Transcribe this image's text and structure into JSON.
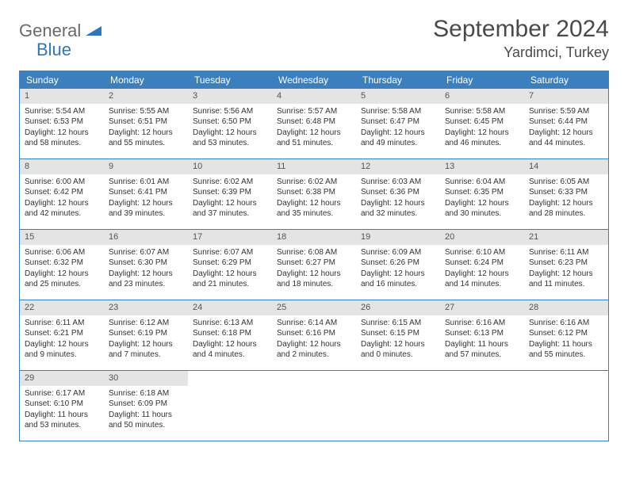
{
  "brand": {
    "name": "General",
    "sub": "Blue"
  },
  "title": "September 2024",
  "location": "Yardimci, Turkey",
  "colors": {
    "header_bg": "#3b7fbf",
    "header_text": "#ffffff",
    "border": "#3b7fbf",
    "date_bar_bg": "#e4e4e4",
    "body_text": "#333333",
    "brand_gray": "#6a6a6a",
    "brand_blue": "#2f77b6"
  },
  "typography": {
    "title_fontsize": 30,
    "location_fontsize": 18,
    "weekday_fontsize": 12,
    "date_fontsize": 11,
    "body_fontsize": 10
  },
  "weekdays": [
    "Sunday",
    "Monday",
    "Tuesday",
    "Wednesday",
    "Thursday",
    "Friday",
    "Saturday"
  ],
  "weeks": [
    [
      {
        "date": "1",
        "sunrise": "Sunrise: 5:54 AM",
        "sunset": "Sunset: 6:53 PM",
        "daylight1": "Daylight: 12 hours",
        "daylight2": "and 58 minutes."
      },
      {
        "date": "2",
        "sunrise": "Sunrise: 5:55 AM",
        "sunset": "Sunset: 6:51 PM",
        "daylight1": "Daylight: 12 hours",
        "daylight2": "and 55 minutes."
      },
      {
        "date": "3",
        "sunrise": "Sunrise: 5:56 AM",
        "sunset": "Sunset: 6:50 PM",
        "daylight1": "Daylight: 12 hours",
        "daylight2": "and 53 minutes."
      },
      {
        "date": "4",
        "sunrise": "Sunrise: 5:57 AM",
        "sunset": "Sunset: 6:48 PM",
        "daylight1": "Daylight: 12 hours",
        "daylight2": "and 51 minutes."
      },
      {
        "date": "5",
        "sunrise": "Sunrise: 5:58 AM",
        "sunset": "Sunset: 6:47 PM",
        "daylight1": "Daylight: 12 hours",
        "daylight2": "and 49 minutes."
      },
      {
        "date": "6",
        "sunrise": "Sunrise: 5:58 AM",
        "sunset": "Sunset: 6:45 PM",
        "daylight1": "Daylight: 12 hours",
        "daylight2": "and 46 minutes."
      },
      {
        "date": "7",
        "sunrise": "Sunrise: 5:59 AM",
        "sunset": "Sunset: 6:44 PM",
        "daylight1": "Daylight: 12 hours",
        "daylight2": "and 44 minutes."
      }
    ],
    [
      {
        "date": "8",
        "sunrise": "Sunrise: 6:00 AM",
        "sunset": "Sunset: 6:42 PM",
        "daylight1": "Daylight: 12 hours",
        "daylight2": "and 42 minutes."
      },
      {
        "date": "9",
        "sunrise": "Sunrise: 6:01 AM",
        "sunset": "Sunset: 6:41 PM",
        "daylight1": "Daylight: 12 hours",
        "daylight2": "and 39 minutes."
      },
      {
        "date": "10",
        "sunrise": "Sunrise: 6:02 AM",
        "sunset": "Sunset: 6:39 PM",
        "daylight1": "Daylight: 12 hours",
        "daylight2": "and 37 minutes."
      },
      {
        "date": "11",
        "sunrise": "Sunrise: 6:02 AM",
        "sunset": "Sunset: 6:38 PM",
        "daylight1": "Daylight: 12 hours",
        "daylight2": "and 35 minutes."
      },
      {
        "date": "12",
        "sunrise": "Sunrise: 6:03 AM",
        "sunset": "Sunset: 6:36 PM",
        "daylight1": "Daylight: 12 hours",
        "daylight2": "and 32 minutes."
      },
      {
        "date": "13",
        "sunrise": "Sunrise: 6:04 AM",
        "sunset": "Sunset: 6:35 PM",
        "daylight1": "Daylight: 12 hours",
        "daylight2": "and 30 minutes."
      },
      {
        "date": "14",
        "sunrise": "Sunrise: 6:05 AM",
        "sunset": "Sunset: 6:33 PM",
        "daylight1": "Daylight: 12 hours",
        "daylight2": "and 28 minutes."
      }
    ],
    [
      {
        "date": "15",
        "sunrise": "Sunrise: 6:06 AM",
        "sunset": "Sunset: 6:32 PM",
        "daylight1": "Daylight: 12 hours",
        "daylight2": "and 25 minutes."
      },
      {
        "date": "16",
        "sunrise": "Sunrise: 6:07 AM",
        "sunset": "Sunset: 6:30 PM",
        "daylight1": "Daylight: 12 hours",
        "daylight2": "and 23 minutes."
      },
      {
        "date": "17",
        "sunrise": "Sunrise: 6:07 AM",
        "sunset": "Sunset: 6:29 PM",
        "daylight1": "Daylight: 12 hours",
        "daylight2": "and 21 minutes."
      },
      {
        "date": "18",
        "sunrise": "Sunrise: 6:08 AM",
        "sunset": "Sunset: 6:27 PM",
        "daylight1": "Daylight: 12 hours",
        "daylight2": "and 18 minutes."
      },
      {
        "date": "19",
        "sunrise": "Sunrise: 6:09 AM",
        "sunset": "Sunset: 6:26 PM",
        "daylight1": "Daylight: 12 hours",
        "daylight2": "and 16 minutes."
      },
      {
        "date": "20",
        "sunrise": "Sunrise: 6:10 AM",
        "sunset": "Sunset: 6:24 PM",
        "daylight1": "Daylight: 12 hours",
        "daylight2": "and 14 minutes."
      },
      {
        "date": "21",
        "sunrise": "Sunrise: 6:11 AM",
        "sunset": "Sunset: 6:23 PM",
        "daylight1": "Daylight: 12 hours",
        "daylight2": "and 11 minutes."
      }
    ],
    [
      {
        "date": "22",
        "sunrise": "Sunrise: 6:11 AM",
        "sunset": "Sunset: 6:21 PM",
        "daylight1": "Daylight: 12 hours",
        "daylight2": "and 9 minutes."
      },
      {
        "date": "23",
        "sunrise": "Sunrise: 6:12 AM",
        "sunset": "Sunset: 6:19 PM",
        "daylight1": "Daylight: 12 hours",
        "daylight2": "and 7 minutes."
      },
      {
        "date": "24",
        "sunrise": "Sunrise: 6:13 AM",
        "sunset": "Sunset: 6:18 PM",
        "daylight1": "Daylight: 12 hours",
        "daylight2": "and 4 minutes."
      },
      {
        "date": "25",
        "sunrise": "Sunrise: 6:14 AM",
        "sunset": "Sunset: 6:16 PM",
        "daylight1": "Daylight: 12 hours",
        "daylight2": "and 2 minutes."
      },
      {
        "date": "26",
        "sunrise": "Sunrise: 6:15 AM",
        "sunset": "Sunset: 6:15 PM",
        "daylight1": "Daylight: 12 hours",
        "daylight2": "and 0 minutes."
      },
      {
        "date": "27",
        "sunrise": "Sunrise: 6:16 AM",
        "sunset": "Sunset: 6:13 PM",
        "daylight1": "Daylight: 11 hours",
        "daylight2": "and 57 minutes."
      },
      {
        "date": "28",
        "sunrise": "Sunrise: 6:16 AM",
        "sunset": "Sunset: 6:12 PM",
        "daylight1": "Daylight: 11 hours",
        "daylight2": "and 55 minutes."
      }
    ],
    [
      {
        "date": "29",
        "sunrise": "Sunrise: 6:17 AM",
        "sunset": "Sunset: 6:10 PM",
        "daylight1": "Daylight: 11 hours",
        "daylight2": "and 53 minutes."
      },
      {
        "date": "30",
        "sunrise": "Sunrise: 6:18 AM",
        "sunset": "Sunset: 6:09 PM",
        "daylight1": "Daylight: 11 hours",
        "daylight2": "and 50 minutes."
      },
      null,
      null,
      null,
      null,
      null
    ]
  ]
}
